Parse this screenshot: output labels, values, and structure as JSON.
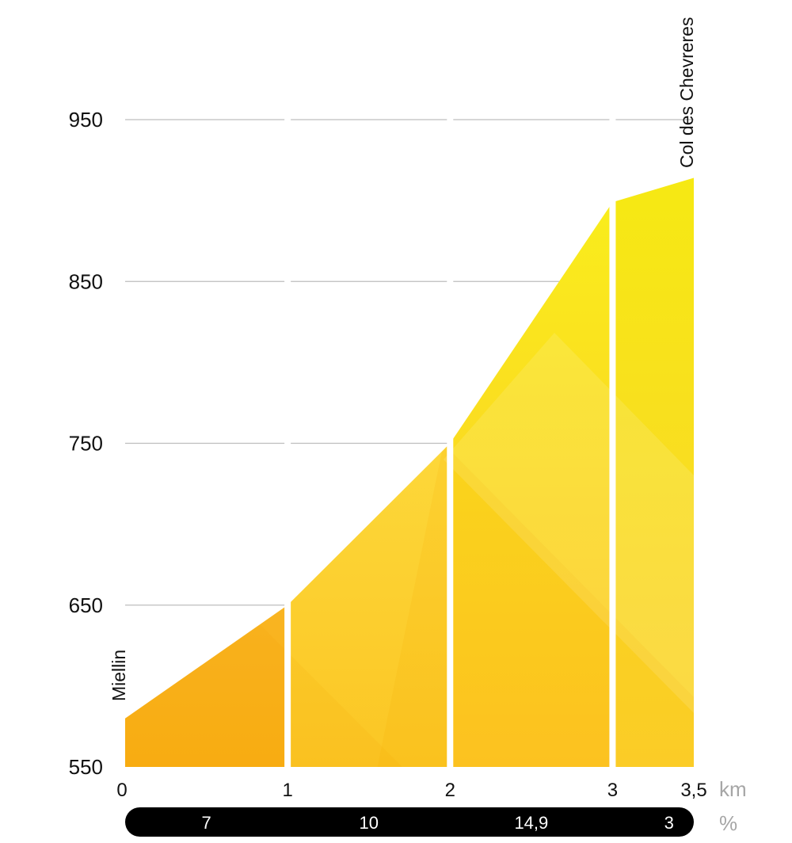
{
  "chart_data": {
    "type": "area",
    "title": "",
    "xlabel": "",
    "ylabel": "",
    "x_unit": "km",
    "gradient_unit": "%",
    "xlim": [
      0,
      3.5
    ],
    "ylim": [
      550,
      950
    ],
    "yticks": [
      "950",
      "850",
      "750",
      "650",
      "550"
    ],
    "xticks": [
      "0",
      "1",
      "2",
      "3",
      "3,5"
    ],
    "grid": true,
    "profile": [
      {
        "x": 0,
        "elevation": 580
      },
      {
        "x": 1,
        "elevation": 650
      },
      {
        "x": 2,
        "elevation": 750
      },
      {
        "x": 3,
        "elevation": 899
      },
      {
        "x": 3.5,
        "elevation": 914
      }
    ],
    "segments": [
      {
        "from": 0,
        "to": 1,
        "gradient": "7",
        "color": "#f9b41a"
      },
      {
        "from": 1,
        "to": 2,
        "gradient": "10",
        "color": "#fcd332"
      },
      {
        "from": 2,
        "to": 3,
        "gradient": "14,9",
        "color": "#fde43a"
      },
      {
        "from": 3,
        "to": 3.5,
        "gradient": "3",
        "color": "#f7e61c"
      }
    ],
    "start_label": "Miellin",
    "end_label": "Col des Chevreres"
  }
}
